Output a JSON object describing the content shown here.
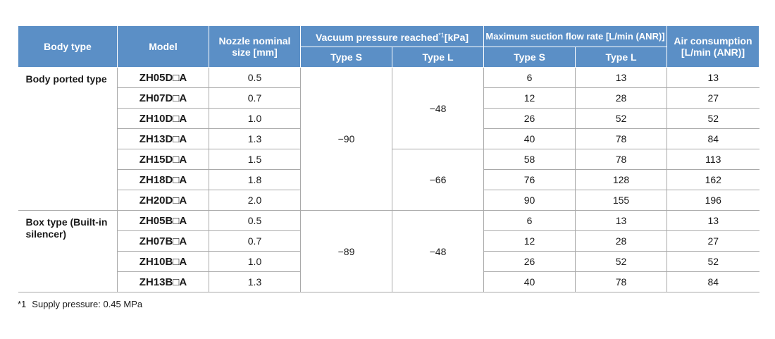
{
  "table": {
    "headers": {
      "body_type": "Body type",
      "model": "Model",
      "nozzle": "Nozzle nominal size [mm]",
      "vacuum_title": "Vacuum pressure reached",
      "vacuum_sup": "*1",
      "vacuum_unit": "[kPa]",
      "flow_title": "Maximum suction flow rate [L/min (ANR)]",
      "air": "Air consumption [L/min (ANR)]",
      "type_s": "Type S",
      "type_l": "Type L"
    },
    "groups": [
      {
        "body_type": "Body ported type",
        "vacuum_s": "−90",
        "vacuum_l": [
          "−48",
          "−66"
        ],
        "rows": [
          {
            "model": "ZH05D□A",
            "nozzle": "0.5",
            "flow_s": "6",
            "flow_l": "13",
            "air": "13"
          },
          {
            "model": "ZH07D□A",
            "nozzle": "0.7",
            "flow_s": "12",
            "flow_l": "28",
            "air": "27"
          },
          {
            "model": "ZH10D□A",
            "nozzle": "1.0",
            "flow_s": "26",
            "flow_l": "52",
            "air": "52"
          },
          {
            "model": "ZH13D□A",
            "nozzle": "1.3",
            "flow_s": "40",
            "flow_l": "78",
            "air": "84"
          },
          {
            "model": "ZH15D□A",
            "nozzle": "1.5",
            "flow_s": "58",
            "flow_l": "78",
            "air": "113"
          },
          {
            "model": "ZH18D□A",
            "nozzle": "1.8",
            "flow_s": "76",
            "flow_l": "128",
            "air": "162"
          },
          {
            "model": "ZH20D□A",
            "nozzle": "2.0",
            "flow_s": "90",
            "flow_l": "155",
            "air": "196"
          }
        ]
      },
      {
        "body_type": "Box type (Built-in silencer)",
        "vacuum_s": "−89",
        "vacuum_l": [
          "−48"
        ],
        "rows": [
          {
            "model": "ZH05B□A",
            "nozzle": "0.5",
            "flow_s": "6",
            "flow_l": "13",
            "air": "13"
          },
          {
            "model": "ZH07B□A",
            "nozzle": "0.7",
            "flow_s": "12",
            "flow_l": "28",
            "air": "27"
          },
          {
            "model": "ZH10B□A",
            "nozzle": "1.0",
            "flow_s": "26",
            "flow_l": "52",
            "air": "52"
          },
          {
            "model": "ZH13B□A",
            "nozzle": "1.3",
            "flow_s": "40",
            "flow_l": "78",
            "air": "84"
          }
        ]
      }
    ]
  },
  "footnote": {
    "mark": "*1",
    "text": "Supply pressure: 0.45 MPa"
  },
  "colors": {
    "header_bg": "#5b8fc6",
    "header_text": "#ffffff",
    "rule": "#a9a9a9"
  }
}
